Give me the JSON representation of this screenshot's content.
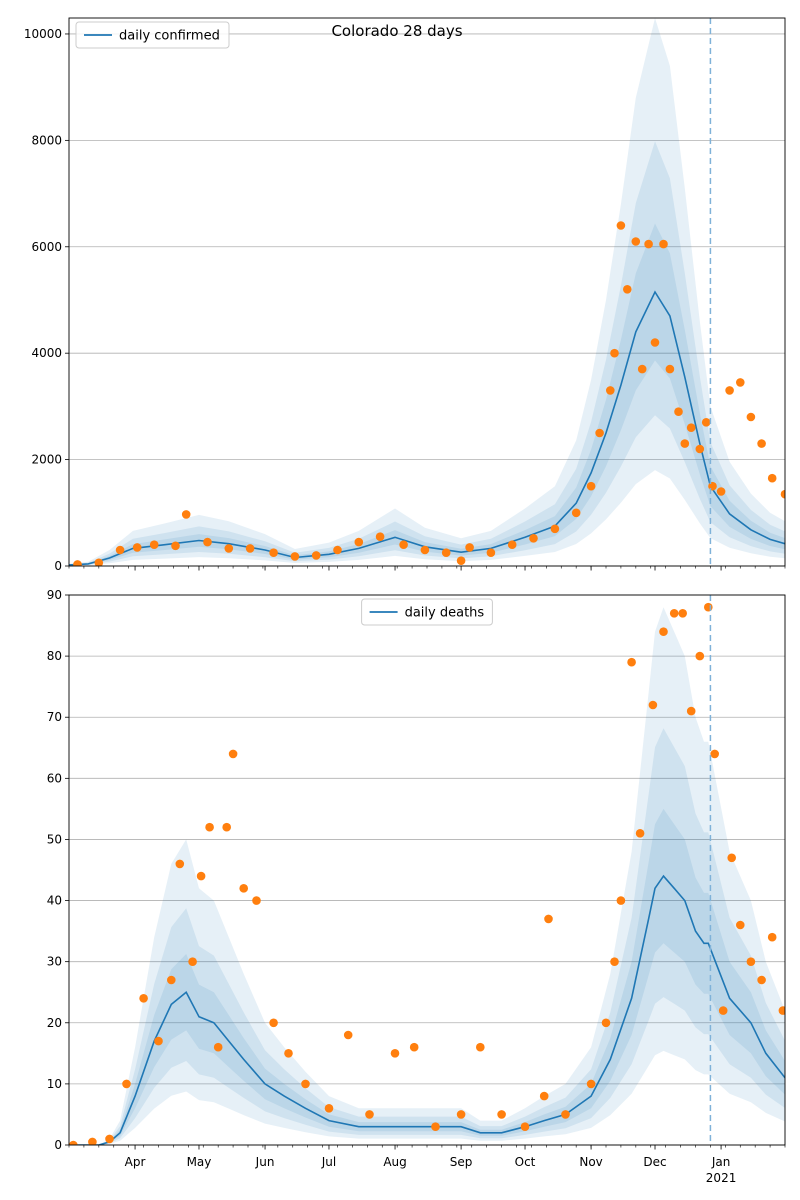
{
  "chart_data": [
    {
      "type": "line",
      "title": "Colorado 28 days",
      "legend": {
        "placement": "top-left",
        "entries": [
          "daily confirmed"
        ]
      },
      "grid": "y",
      "xlim": [
        "2020-03-01",
        "2021-01-31"
      ],
      "ylim": [
        0,
        10300
      ],
      "yticks": [
        0,
        2000,
        4000,
        6000,
        8000,
        10000
      ],
      "vline_date": "2020-12-27",
      "series": [
        {
          "name": "daily confirmed",
          "kind": "line",
          "color": "#1f77b4",
          "x": [
            "2020-03-01",
            "2020-03-10",
            "2020-03-20",
            "2020-03-31",
            "2020-04-15",
            "2020-05-01",
            "2020-05-15",
            "2020-06-01",
            "2020-06-15",
            "2020-07-01",
            "2020-07-15",
            "2020-08-01",
            "2020-08-15",
            "2020-09-01",
            "2020-09-15",
            "2020-10-01",
            "2020-10-15",
            "2020-10-25",
            "2020-11-01",
            "2020-11-08",
            "2020-11-15",
            "2020-11-22",
            "2020-12-01",
            "2020-12-08",
            "2020-12-15",
            "2020-12-22",
            "2020-12-27",
            "2021-01-05",
            "2021-01-15",
            "2021-01-24",
            "2021-01-31"
          ],
          "y": [
            20,
            40,
            150,
            330,
            400,
            480,
            420,
            300,
            160,
            220,
            330,
            540,
            360,
            260,
            330,
            540,
            750,
            1180,
            1750,
            2500,
            3400,
            4400,
            5150,
            4700,
            3550,
            2300,
            1500,
            980,
            680,
            500,
            420
          ]
        },
        {
          "name": "",
          "kind": "scatter",
          "color": "#ff7f0e",
          "x": [
            "2020-03-05",
            "2020-03-15",
            "2020-03-25",
            "2020-04-02",
            "2020-04-10",
            "2020-04-20",
            "2020-04-25",
            "2020-05-05",
            "2020-05-15",
            "2020-05-25",
            "2020-06-05",
            "2020-06-15",
            "2020-06-25",
            "2020-07-05",
            "2020-07-15",
            "2020-07-25",
            "2020-08-05",
            "2020-08-15",
            "2020-08-25",
            "2020-09-01",
            "2020-09-05",
            "2020-09-15",
            "2020-09-25",
            "2020-10-05",
            "2020-10-15",
            "2020-10-25",
            "2020-11-01",
            "2020-11-05",
            "2020-11-10",
            "2020-11-12",
            "2020-11-15",
            "2020-11-18",
            "2020-11-22",
            "2020-11-25",
            "2020-11-28",
            "2020-12-01",
            "2020-12-05",
            "2020-12-08",
            "2020-12-12",
            "2020-12-15",
            "2020-12-18",
            "2020-12-22",
            "2020-12-25",
            "2020-12-28",
            "2021-01-01",
            "2021-01-05",
            "2021-01-10",
            "2021-01-15",
            "2021-01-20",
            "2021-01-25",
            "2021-01-31"
          ],
          "y": [
            30,
            60,
            300,
            350,
            400,
            380,
            970,
            450,
            330,
            330,
            250,
            180,
            200,
            300,
            450,
            550,
            400,
            300,
            250,
            100,
            350,
            250,
            400,
            520,
            700,
            1000,
            1500,
            2500,
            3300,
            4000,
            6400,
            5200,
            6100,
            3700,
            6050,
            4200,
            6050,
            3700,
            2900,
            2300,
            2600,
            2200,
            2700,
            1500,
            1400,
            3300,
            3450,
            2800,
            2300,
            1650,
            1350
          ]
        }
      ]
    },
    {
      "type": "line",
      "legend": {
        "placement": "top-center",
        "entries": [
          "daily deaths"
        ]
      },
      "grid": "y",
      "xlim": [
        "2020-03-01",
        "2021-01-31"
      ],
      "ylim": [
        0,
        90
      ],
      "yticks": [
        0,
        10,
        20,
        30,
        40,
        50,
        60,
        70,
        80,
        90
      ],
      "xticks": [
        {
          "date": "2020-04-01",
          "label": "Apr"
        },
        {
          "date": "2020-05-01",
          "label": "May"
        },
        {
          "date": "2020-06-01",
          "label": "Jun"
        },
        {
          "date": "2020-07-01",
          "label": "Jul"
        },
        {
          "date": "2020-08-01",
          "label": "Aug"
        },
        {
          "date": "2020-09-01",
          "label": "Sep"
        },
        {
          "date": "2020-10-01",
          "label": "Oct"
        },
        {
          "date": "2020-11-01",
          "label": "Nov"
        },
        {
          "date": "2020-12-01",
          "label": "Dec"
        },
        {
          "date": "2021-01-01",
          "label": "Jan",
          "sub": "2021"
        }
      ],
      "vline_date": "2020-12-27",
      "series": [
        {
          "name": "daily deaths",
          "kind": "line",
          "color": "#1f77b4",
          "x": [
            "2020-03-01",
            "2020-03-15",
            "2020-03-20",
            "2020-03-25",
            "2020-04-01",
            "2020-04-10",
            "2020-04-18",
            "2020-04-25",
            "2020-05-01",
            "2020-05-08",
            "2020-05-15",
            "2020-05-22",
            "2020-06-01",
            "2020-06-10",
            "2020-06-20",
            "2020-07-01",
            "2020-07-15",
            "2020-08-01",
            "2020-08-15",
            "2020-09-01",
            "2020-09-10",
            "2020-09-20",
            "2020-10-01",
            "2020-10-10",
            "2020-10-20",
            "2020-11-01",
            "2020-11-10",
            "2020-11-20",
            "2020-11-28",
            "2020-12-01",
            "2020-12-05",
            "2020-12-10",
            "2020-12-15",
            "2020-12-20",
            "2020-12-24",
            "2020-12-26",
            "2021-01-05",
            "2021-01-15",
            "2021-01-22",
            "2021-01-31"
          ],
          "y": [
            0,
            0,
            0.5,
            2,
            8,
            17,
            23,
            25,
            21,
            20,
            17,
            14,
            10,
            8,
            6,
            4,
            3,
            3,
            3,
            3,
            2,
            2,
            3,
            4,
            5,
            8,
            14,
            24,
            37,
            42,
            44,
            42,
            40,
            35,
            33,
            33,
            24,
            20,
            15,
            11
          ]
        },
        {
          "name": "",
          "kind": "scatter",
          "color": "#ff7f0e",
          "x": [
            "2020-03-03",
            "2020-03-12",
            "2020-03-20",
            "2020-03-28",
            "2020-04-05",
            "2020-04-12",
            "2020-04-18",
            "2020-04-22",
            "2020-04-28",
            "2020-05-02",
            "2020-05-06",
            "2020-05-10",
            "2020-05-14",
            "2020-05-17",
            "2020-05-22",
            "2020-05-28",
            "2020-06-05",
            "2020-06-12",
            "2020-06-20",
            "2020-07-01",
            "2020-07-10",
            "2020-07-20",
            "2020-08-01",
            "2020-08-10",
            "2020-08-20",
            "2020-09-01",
            "2020-09-10",
            "2020-09-20",
            "2020-10-01",
            "2020-10-10",
            "2020-10-12",
            "2020-10-20",
            "2020-11-01",
            "2020-11-08",
            "2020-11-12",
            "2020-11-15",
            "2020-11-20",
            "2020-11-24",
            "2020-11-30",
            "2020-12-05",
            "2020-12-10",
            "2020-12-14",
            "2020-12-18",
            "2020-12-22",
            "2020-12-26",
            "2020-12-29",
            "2021-01-02",
            "2021-01-06",
            "2021-01-10",
            "2021-01-15",
            "2021-01-20",
            "2021-01-25",
            "2021-01-30"
          ],
          "y": [
            0,
            0.5,
            1,
            10,
            24,
            17,
            27,
            46,
            30,
            44,
            52,
            16,
            52,
            64,
            42,
            40,
            20,
            15,
            10,
            6,
            18,
            5,
            15,
            16,
            3,
            5,
            16,
            5,
            3,
            8,
            37,
            5,
            10,
            20,
            30,
            40,
            79,
            51,
            72,
            84,
            87,
            87,
            71,
            80,
            88,
            64,
            22,
            47,
            36,
            30,
            27,
            34,
            22
          ]
        }
      ]
    }
  ]
}
